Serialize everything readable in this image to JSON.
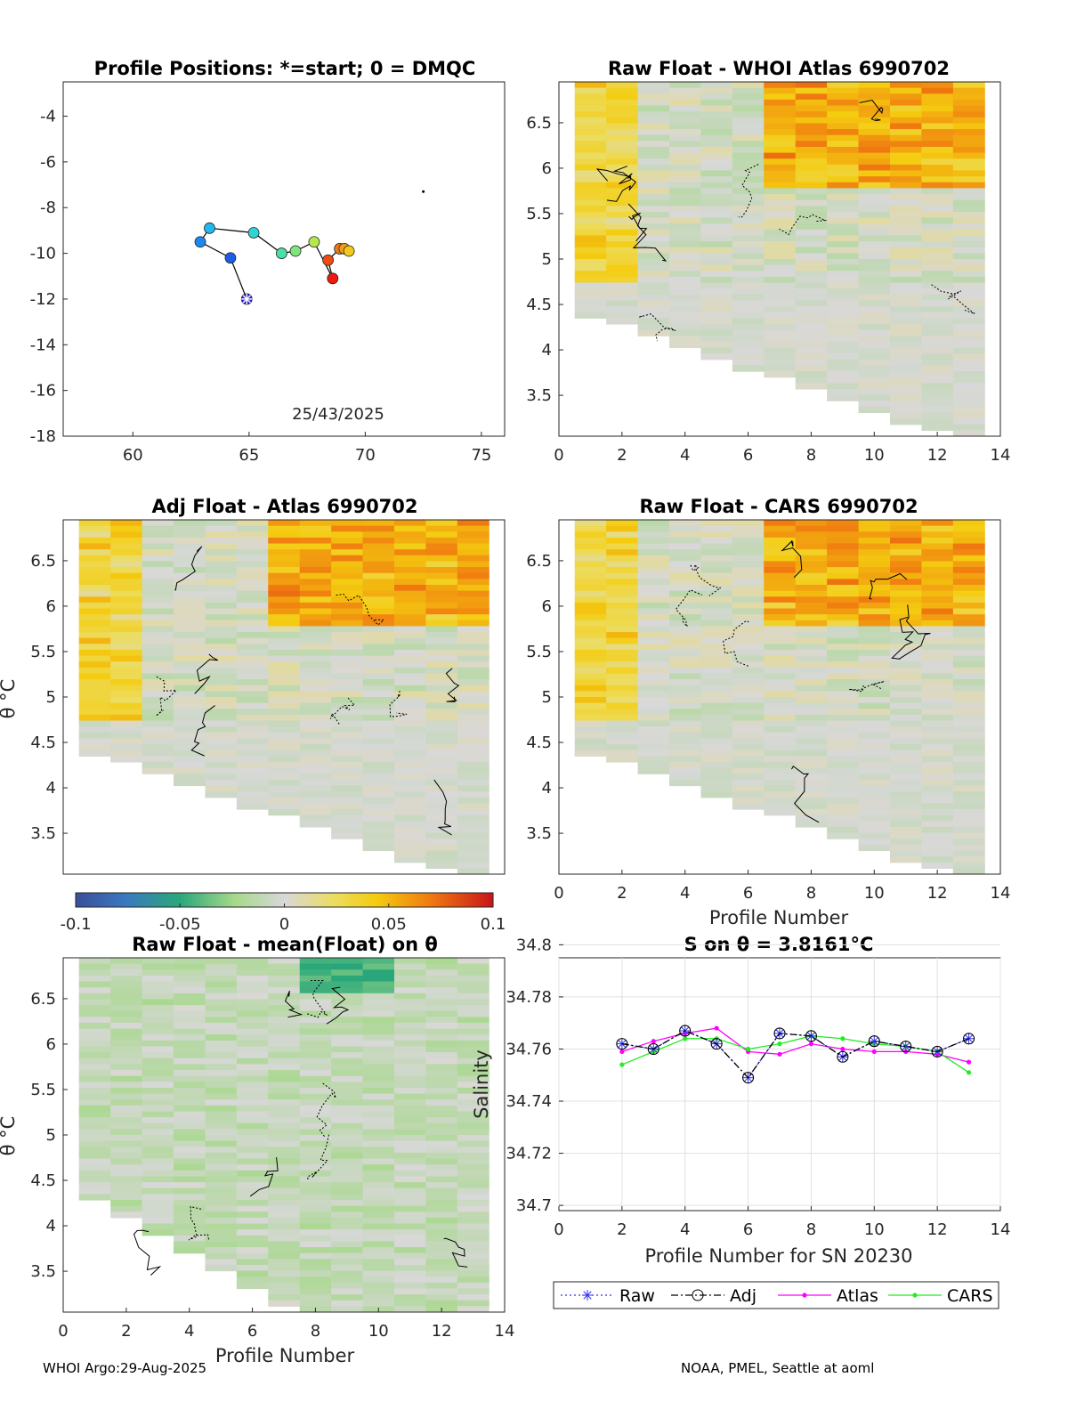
{
  "chart_data": [
    {
      "id": "positions",
      "type": "scatter",
      "title": "Profile Positions: *=start; 0 = DMQC",
      "xlim": [
        57,
        76
      ],
      "ylim": [
        -18,
        -2.5
      ],
      "xticks": [
        60,
        65,
        70,
        75
      ],
      "yticks": [
        -18,
        -16,
        -14,
        -12,
        -10,
        -8,
        -6,
        -4
      ],
      "date_label": "25/43/2025",
      "start": {
        "lon": 64.9,
        "lat": -12.0
      },
      "x": [
        64.9,
        64.2,
        62.9,
        63.3,
        65.2,
        66.4,
        67.0,
        67.8,
        68.6,
        68.4,
        68.9,
        69.1,
        69.3
      ],
      "y": [
        -12.0,
        -10.2,
        -9.5,
        -8.9,
        -9.1,
        -10.0,
        -9.9,
        -9.5,
        -11.1,
        -10.3,
        -9.8,
        -9.8,
        -9.9
      ],
      "colors": [
        "#2a20d8",
        "#1f5ce6",
        "#1d88ee",
        "#22b8ee",
        "#2fd5d0",
        "#49e0a8",
        "#7ee67a",
        "#b2e84c",
        "#ee1a10",
        "#ee4a12",
        "#f07a14",
        "#f0a018",
        "#f2c81c"
      ],
      "marker_x": 72.5,
      "marker_y": -7.3
    },
    {
      "id": "raw_whoi",
      "type": "heatmap",
      "title": "Raw Float - WHOI Atlas  6990702",
      "xlim": [
        0,
        14
      ],
      "ylim": [
        3.05,
        6.95
      ],
      "xticks": [
        0,
        2,
        4,
        6,
        8,
        10,
        12,
        14
      ],
      "yticks": [
        3.5,
        4,
        4.5,
        5,
        5.5,
        6,
        6.5
      ],
      "xlabel": "",
      "ylabel": ""
    },
    {
      "id": "adj_atlas",
      "type": "heatmap",
      "title": "Adj Float - Atlas  6990702",
      "xlim": [
        1,
        14
      ],
      "ylim": [
        3.05,
        6.95
      ],
      "xticks": [],
      "yticks": [
        3.5,
        4,
        4.5,
        5,
        5.5,
        6,
        6.5
      ],
      "xlabel": "",
      "ylabel": "θ °C"
    },
    {
      "id": "raw_cars",
      "type": "heatmap",
      "title": "Raw Float - CARS  6990702",
      "xlim": [
        0,
        14
      ],
      "ylim": [
        3.05,
        6.95
      ],
      "xticks": [
        0,
        2,
        4,
        6,
        8,
        10,
        12,
        14
      ],
      "yticks": [
        3.5,
        4,
        4.5,
        5,
        5.5,
        6,
        6.5
      ],
      "xlabel": "Profile Number",
      "ylabel": ""
    },
    {
      "id": "colorbar",
      "type": "heatmap",
      "range": [
        -0.1,
        0.1
      ],
      "tick_labels": [
        "-0.1",
        "-0.05",
        "0",
        "0.05",
        "0.1"
      ]
    },
    {
      "id": "raw_mean",
      "type": "heatmap",
      "title": "Raw Float - mean(Float) on θ",
      "xlim": [
        0,
        14
      ],
      "ylim": [
        3.05,
        6.95
      ],
      "xticks": [
        0,
        2,
        4,
        6,
        8,
        10,
        12,
        14
      ],
      "yticks": [
        3.5,
        4,
        4.5,
        5,
        5.5,
        6,
        6.5
      ],
      "xlabel": "Profile Number",
      "ylabel": "θ °C"
    },
    {
      "id": "salinity",
      "type": "line",
      "title": "S on θ = 3.8161°C",
      "xlim": [
        0,
        14
      ],
      "ylim": [
        34.698,
        34.795
      ],
      "xticks": [
        0,
        2,
        4,
        6,
        8,
        10,
        12,
        14
      ],
      "yticks": [
        34.7,
        34.72,
        34.74,
        34.76,
        34.78,
        34.8
      ],
      "xlabel": "Profile Number for SN 20230",
      "ylabel": "Salinity",
      "x": [
        2,
        3,
        4,
        5,
        6,
        7,
        8,
        9,
        10,
        11,
        12,
        13
      ],
      "series": [
        {
          "name": "Raw",
          "color": "#3030ee",
          "values": [
            34.762,
            34.76,
            34.767,
            34.762,
            34.749,
            34.766,
            34.765,
            34.757,
            34.763,
            34.761,
            34.759,
            34.764
          ]
        },
        {
          "name": "Adj",
          "color": "#000000",
          "values": [
            34.762,
            34.76,
            34.767,
            34.762,
            34.749,
            34.766,
            34.765,
            34.757,
            34.763,
            34.761,
            34.759,
            34.764
          ]
        },
        {
          "name": "Atlas",
          "color": "#ff00ff",
          "values": [
            34.759,
            34.763,
            34.766,
            34.768,
            34.759,
            34.758,
            34.762,
            34.76,
            34.759,
            34.759,
            34.758,
            34.755
          ]
        },
        {
          "name": "CARS",
          "color": "#22ee22",
          "values": [
            34.754,
            34.759,
            34.764,
            34.764,
            34.76,
            34.762,
            34.765,
            34.764,
            34.762,
            34.761,
            34.759,
            34.751
          ]
        }
      ]
    }
  ],
  "footer": {
    "left": "WHOI Argo:29-Aug-2025",
    "right": "NOAA, PMEL, Seattle at aoml"
  }
}
